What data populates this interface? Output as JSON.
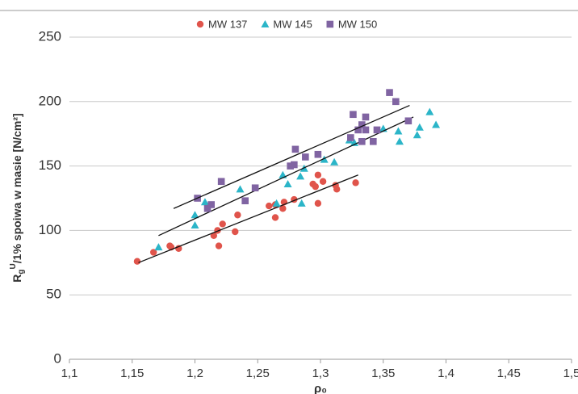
{
  "chart_data": {
    "type": "scatter",
    "xlabel": "ρ₀",
    "ylabel": {
      "base": "R",
      "sub": "g",
      "sup": "U",
      "rest": "/1% spoiwa w masie [N/cm²]"
    },
    "xlim": [
      1.1,
      1.5
    ],
    "xticks": [
      {
        "value": 1.1,
        "label": "1,1"
      },
      {
        "value": 1.15,
        "label": "1,15"
      },
      {
        "value": 1.2,
        "label": "1,2"
      },
      {
        "value": 1.25,
        "label": "1,25"
      },
      {
        "value": 1.3,
        "label": "1,3"
      },
      {
        "value": 1.35,
        "label": "1,35"
      },
      {
        "value": 1.4,
        "label": "1,4"
      },
      {
        "value": 1.45,
        "label": "1,45"
      },
      {
        "value": 1.5,
        "label": "1,5"
      }
    ],
    "ylim": [
      0,
      250
    ],
    "yticks": [
      0,
      50,
      100,
      150,
      200,
      250
    ],
    "grid": true,
    "legend": "top",
    "series": [
      {
        "name": "MW 137",
        "color": "#e0544b",
        "marker": "circle",
        "x": [
          1.154,
          1.167,
          1.18,
          1.181,
          1.187,
          1.215,
          1.218,
          1.219,
          1.222,
          1.232,
          1.234,
          1.259,
          1.264,
          1.264,
          1.27,
          1.271,
          1.279,
          1.294,
          1.296,
          1.298,
          1.298,
          1.302,
          1.312,
          1.313,
          1.328
        ],
        "values": [
          76,
          83,
          88,
          87,
          86,
          96,
          100,
          88,
          105,
          99,
          112,
          119,
          110,
          120,
          117,
          122,
          124,
          136,
          134,
          143,
          121,
          138,
          135,
          132,
          137
        ],
        "trend": {
          "x": [
            1.155,
            1.33
          ],
          "values": [
            75,
            143
          ]
        }
      },
      {
        "name": "MW 145",
        "color": "#2bb5c8",
        "marker": "triangle",
        "x": [
          1.171,
          1.2,
          1.2,
          1.208,
          1.236,
          1.265,
          1.27,
          1.274,
          1.284,
          1.285,
          1.287,
          1.303,
          1.311,
          1.323,
          1.327,
          1.35,
          1.362,
          1.363,
          1.377,
          1.379,
          1.387,
          1.392
        ],
        "values": [
          87,
          104,
          112,
          122,
          132,
          121,
          143,
          136,
          142,
          121,
          148,
          155,
          153,
          170,
          168,
          179,
          177,
          169,
          174,
          180,
          192,
          182
        ],
        "trend": {
          "x": [
            1.171,
            1.374
          ],
          "values": [
            96,
            188
          ]
        }
      },
      {
        "name": "MW 150",
        "color": "#8064a2",
        "marker": "square",
        "x": [
          1.202,
          1.21,
          1.213,
          1.221,
          1.24,
          1.248,
          1.276,
          1.279,
          1.28,
          1.288,
          1.298,
          1.324,
          1.326,
          1.33,
          1.333,
          1.333,
          1.336,
          1.336,
          1.342,
          1.345,
          1.355,
          1.36,
          1.37
        ],
        "values": [
          125,
          117,
          120,
          138,
          123,
          133,
          150,
          151,
          163,
          157,
          159,
          172,
          190,
          178,
          182,
          169,
          188,
          178,
          169,
          178,
          207,
          200,
          185
        ],
        "trend": {
          "x": [
            1.183,
            1.371
          ],
          "values": [
            117,
            197
          ]
        }
      }
    ]
  }
}
